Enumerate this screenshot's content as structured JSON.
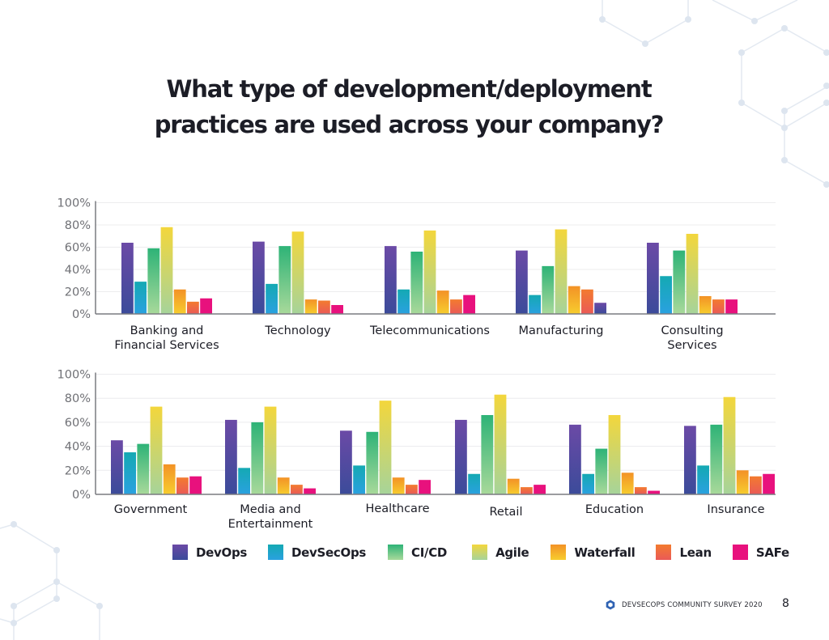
{
  "page": {
    "title_line1": "What type of development/deployment",
    "title_line2": "practices are used across your company?",
    "footer_text": "DEVSECOPS COMMUNITY SURVEY 2020",
    "footer_logo_icon": "hexagon-logo-icon",
    "page_number": "8"
  },
  "series_colors": {
    "DevOps": [
      "#6b4aa6",
      "#3b4b9a"
    ],
    "DevSecOps": [
      "#14a9b3",
      "#2aa1e0"
    ],
    "CI/CD": [
      "#2eb377",
      "#a8d99a"
    ],
    "Agile": [
      "#f3d63c",
      "#a6d49a"
    ],
    "Waterfall": [
      "#f39226",
      "#f7cd2e"
    ],
    "Lean": [
      "#f37b2f",
      "#ea5a57"
    ],
    "SAFe": [
      "#e8117d",
      "#e8117d"
    ]
  },
  "chart_data": [
    {
      "type": "bar",
      "title": "What type of development/deployment practices are used across your company?",
      "xlabel": "",
      "ylabel": "",
      "ylim": [
        0,
        100
      ],
      "yticks": [
        "0%",
        "20%",
        "40%",
        "60%",
        "80%",
        "100%"
      ],
      "grid": true,
      "legend": "bottom",
      "categories": [
        "Banking and\nFinancial Services",
        "Technology",
        "Telecommunications",
        "Manufacturing",
        "Consulting\nServices"
      ],
      "series": [
        {
          "name": "DevOps",
          "values": [
            64,
            65,
            61,
            57,
            64
          ]
        },
        {
          "name": "DevSecOps",
          "values": [
            29,
            27,
            22,
            17,
            34
          ]
        },
        {
          "name": "CI/CD",
          "values": [
            59,
            61,
            56,
            43,
            57
          ]
        },
        {
          "name": "Agile",
          "values": [
            78,
            74,
            75,
            76,
            72
          ]
        },
        {
          "name": "Waterfall",
          "values": [
            22,
            13,
            21,
            25,
            16
          ]
        },
        {
          "name": "Lean",
          "values": [
            11,
            12,
            13,
            22,
            13
          ]
        },
        {
          "name": "SAFe",
          "values": [
            14,
            8,
            17,
            10,
            13
          ]
        }
      ],
      "bar_color_overrides": [
        {
          "series": "SAFe",
          "category": "Manufacturing",
          "color": "DevOps"
        }
      ]
    },
    {
      "type": "bar",
      "title": "",
      "xlabel": "",
      "ylabel": "",
      "ylim": [
        0,
        100
      ],
      "yticks": [
        "0%",
        "20%",
        "40%",
        "60%",
        "80%",
        "100%"
      ],
      "grid": true,
      "legend": "bottom",
      "categories": [
        "Government",
        "Media and\nEntertainment",
        "Healthcare",
        "Retail",
        "Education",
        "Insurance"
      ],
      "series": [
        {
          "name": "DevOps",
          "values": [
            45,
            62,
            53,
            62,
            58,
            57
          ]
        },
        {
          "name": "DevSecOps",
          "values": [
            35,
            22,
            24,
            17,
            17,
            24
          ]
        },
        {
          "name": "CI/CD",
          "values": [
            42,
            60,
            52,
            66,
            38,
            58
          ]
        },
        {
          "name": "Agile",
          "values": [
            73,
            73,
            78,
            83,
            66,
            81
          ]
        },
        {
          "name": "Waterfall",
          "values": [
            25,
            14,
            14,
            13,
            18,
            20
          ]
        },
        {
          "name": "Lean",
          "values": [
            14,
            8,
            8,
            6,
            6,
            15
          ]
        },
        {
          "name": "SAFe",
          "values": [
            15,
            5,
            12,
            8,
            3,
            17
          ]
        }
      ],
      "bar_color_overrides": []
    }
  ],
  "legend": {
    "items": [
      {
        "label": "DevOps",
        "key": "DevOps"
      },
      {
        "label": "DevSecOps",
        "key": "DevSecOps"
      },
      {
        "label": "CI/CD",
        "key": "CI/CD"
      },
      {
        "label": "Agile",
        "key": "Agile"
      },
      {
        "label": "Waterfall",
        "key": "Waterfall"
      },
      {
        "label": "Lean",
        "key": "Lean"
      },
      {
        "label": "SAFe",
        "key": "SAFe"
      }
    ]
  }
}
